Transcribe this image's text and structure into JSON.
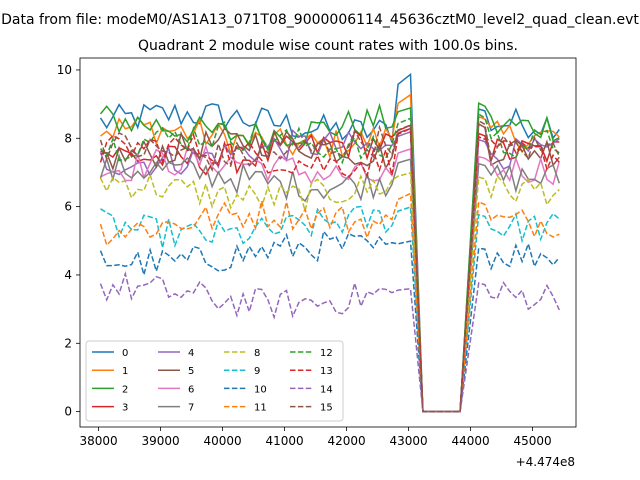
{
  "suptitle": "Data from file: modeM0/AS1A13_071T08_9000006114_45636cztM0_level2_quad_clean.evt",
  "title": "Quadrant 2 module wise count rates with 100.0s bins.",
  "offset_text": "+4.474e8",
  "chart_data": {
    "type": "line",
    "title": "Quadrant 2 module wise count rates with 100.0s bins.",
    "xlabel": "",
    "ylabel": "",
    "x_offset": 447400000,
    "xlim": [
      37700,
      45700
    ],
    "ylim": [
      -0.45,
      10.35
    ],
    "xticks": [
      38000,
      39000,
      40000,
      41000,
      42000,
      43000,
      44000,
      45000
    ],
    "yticks": [
      0,
      2,
      4,
      6,
      8,
      10
    ],
    "gap": {
      "drop_from": 43050,
      "zero_start": 43200,
      "zero_end": 43900,
      "rise_to": 44050
    },
    "x_start": 38030,
    "x_end": 45480,
    "bin": 100,
    "grid": false,
    "legend": {
      "placement": "lower-left",
      "columns": 4
    },
    "series": [
      {
        "name": "0",
        "mean": 8.45,
        "pre_peak": 9.9,
        "post_peak": 8.9,
        "color": "#1f77b4",
        "style": "solid"
      },
      {
        "name": "1",
        "mean": 8.05,
        "pre_peak": 9.3,
        "post_peak": 8.7,
        "color": "#ff7f0e",
        "style": "solid"
      },
      {
        "name": "2",
        "mean": 8.35,
        "pre_peak": 8.9,
        "post_peak": 9.1,
        "color": "#2ca02c",
        "style": "solid"
      },
      {
        "name": "3",
        "mean": 7.6,
        "pre_peak": 8.4,
        "post_peak": 8.2,
        "color": "#d62728",
        "style": "solid"
      },
      {
        "name": "4",
        "mean": 7.55,
        "pre_peak": 8.2,
        "post_peak": 8.0,
        "color": "#9467bd",
        "style": "solid"
      },
      {
        "name": "5",
        "mean": 7.65,
        "pre_peak": 8.3,
        "post_peak": 8.5,
        "color": "#8c564b",
        "style": "solid"
      },
      {
        "name": "6",
        "mean": 7.1,
        "pre_peak": 7.7,
        "post_peak": 7.5,
        "color": "#e377c2",
        "style": "solid"
      },
      {
        "name": "7",
        "mean": 6.85,
        "pre_peak": 7.4,
        "post_peak": 7.3,
        "color": "#7f7f7f",
        "style": "solid"
      },
      {
        "name": "8",
        "mean": 6.5,
        "pre_peak": 7.0,
        "post_peak": 6.9,
        "color": "#bcbd22",
        "style": "dashed"
      },
      {
        "name": "9",
        "mean": 5.4,
        "pre_peak": 6.0,
        "post_peak": 5.8,
        "color": "#17becf",
        "style": "dashed"
      },
      {
        "name": "10",
        "mean": 4.6,
        "pre_peak": 5.0,
        "post_peak": 4.8,
        "color": "#1f77b4",
        "style": "dashed"
      },
      {
        "name": "11",
        "mean": 5.55,
        "pre_peak": 6.4,
        "post_peak": 6.2,
        "color": "#ff7f0e",
        "style": "dashed"
      },
      {
        "name": "12",
        "mean": 7.85,
        "pre_peak": 8.6,
        "post_peak": 8.8,
        "color": "#2ca02c",
        "style": "dashed"
      },
      {
        "name": "13",
        "mean": 7.5,
        "pre_peak": 8.3,
        "post_peak": 8.1,
        "color": "#d62728",
        "style": "dashed"
      },
      {
        "name": "14",
        "mean": 3.4,
        "pre_peak": 3.6,
        "post_peak": 3.8,
        "color": "#9467bd",
        "style": "dashed"
      },
      {
        "name": "15",
        "mean": 7.7,
        "pre_peak": 8.4,
        "post_peak": 8.6,
        "color": "#8c564b",
        "style": "dashed"
      }
    ]
  }
}
